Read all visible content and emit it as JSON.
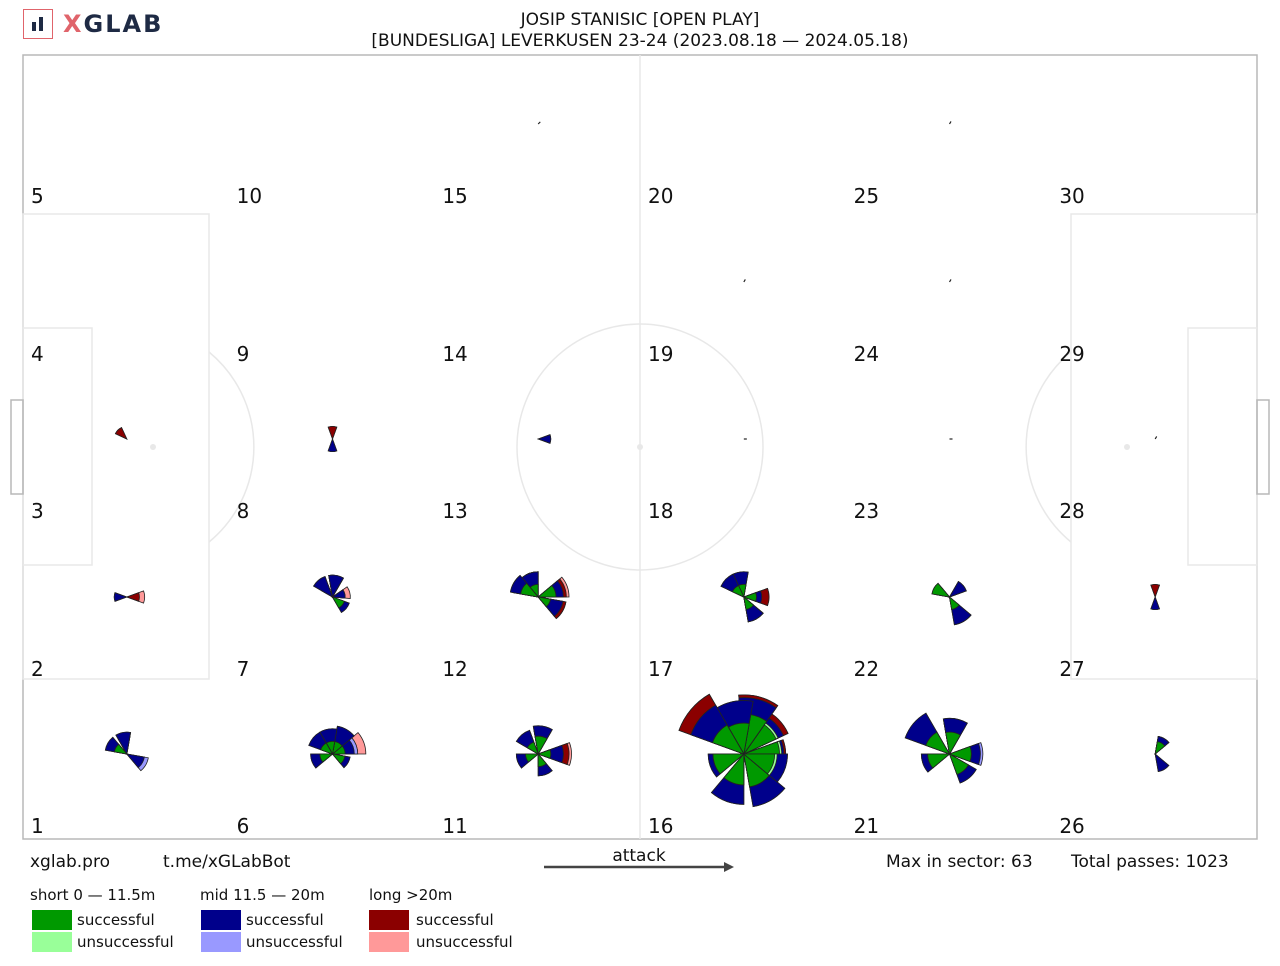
{
  "header": {
    "logo": {
      "text_x": "X",
      "text_rest": "GLAB",
      "icon": "bar-chart-icon"
    },
    "title_line1": "JOSIP STANISIC [OPEN PLAY]",
    "title_line2": "[BUNDESLIGA] LEVERKUSEN 23-24 (2023.08.18 — 2024.05.18)"
  },
  "footer": {
    "site": "xglab.pro",
    "bot": "t.me/xGLabBot",
    "attack": "attack",
    "max_in_sector": "Max in sector: 63",
    "total_passes": "Total passes: 1023"
  },
  "legend": {
    "groups": [
      {
        "label": "short 0 — 11.5m",
        "successful": "successful",
        "unsuccessful": "unsuccessful",
        "color_success": "#009900",
        "color_fail": "#99ff99"
      },
      {
        "label": "mid 11.5 — 20m",
        "successful": "successful",
        "unsuccessful": "unsuccessful",
        "color_success": "#00008b",
        "color_fail": "#9999ff"
      },
      {
        "label": "long >20m",
        "successful": "successful",
        "unsuccessful": "unsuccessful",
        "color_success": "#8b0000",
        "color_fail": "#ff9999"
      }
    ]
  },
  "chart_data": {
    "type": "polar-rose-grid",
    "direction": "attack left-to-right",
    "max_in_sector": 63,
    "total_passes": 1023,
    "sector_labels": [
      "1",
      "2",
      "3",
      "4",
      "5",
      "6",
      "7",
      "8",
      "9",
      "10",
      "11",
      "12",
      "13",
      "14",
      "15",
      "16",
      "17",
      "18",
      "19",
      "20",
      "21",
      "22",
      "23",
      "24",
      "25",
      "26",
      "27",
      "28",
      "29",
      "30"
    ],
    "grid": {
      "columns": 6,
      "rows": 5,
      "numbering": "column-major from bottom-left"
    },
    "roses": [
      {
        "sector": 1,
        "petals": [
          {
            "angle": 100,
            "short": [
              0,
              0
            ],
            "mid": [
              3,
              0
            ],
            "long": [
              2,
              0
            ]
          },
          {
            "angle": 150,
            "short": [
              1,
              0
            ],
            "mid": [
              3,
              0
            ],
            "long": [
              0,
              0
            ]
          },
          {
            "angle": 330,
            "short": [
              0,
              0
            ],
            "mid": [
              2,
              1
            ],
            "long": [
              0,
              2
            ]
          }
        ]
      },
      {
        "sector": 2,
        "petals": [
          {
            "angle": 0,
            "short": [
              0,
              0
            ],
            "mid": [
              0,
              0
            ],
            "long": [
              1,
              1
            ]
          },
          {
            "angle": 180,
            "short": [
              0,
              0
            ],
            "mid": [
              1,
              0
            ],
            "long": [
              0,
              0
            ]
          }
        ]
      },
      {
        "sector": 3,
        "petals": [
          {
            "angle": 135,
            "short": [
              0,
              0
            ],
            "mid": [
              0,
              0
            ],
            "long": [
              1,
              0
            ]
          }
        ]
      },
      {
        "sector": 6,
        "petals": [
          {
            "angle": 20,
            "short": [
              1,
              0
            ],
            "mid": [
              3,
              1
            ],
            "long": [
              4,
              3
            ]
          },
          {
            "angle": 60,
            "short": [
              1,
              0
            ],
            "mid": [
              5,
              0
            ],
            "long": [
              3,
              1
            ]
          },
          {
            "angle": 100,
            "short": [
              1,
              0
            ],
            "mid": [
              4,
              0
            ],
            "long": [
              3,
              0
            ]
          },
          {
            "angle": 140,
            "short": [
              1,
              0
            ],
            "mid": [
              4,
              0
            ],
            "long": [
              1,
              0
            ]
          },
          {
            "angle": 200,
            "short": [
              1,
              0
            ],
            "mid": [
              3,
              0
            ],
            "long": [
              0,
              0
            ]
          },
          {
            "angle": 330,
            "short": [
              1,
              0
            ],
            "mid": [
              2,
              0
            ],
            "long": [
              0,
              0
            ]
          }
        ]
      },
      {
        "sector": 7,
        "petals": [
          {
            "angle": 15,
            "short": [
              0,
              0
            ],
            "mid": [
              1,
              0
            ],
            "long": [
              1,
              1
            ]
          },
          {
            "angle": 80,
            "short": [
              0,
              0
            ],
            "mid": [
              3,
              0
            ],
            "long": [
              3,
              0
            ]
          },
          {
            "angle": 130,
            "short": [
              0,
              0
            ],
            "mid": [
              3,
              0
            ],
            "long": [
              1,
              0
            ]
          },
          {
            "angle": 320,
            "short": [
              1,
              0
            ],
            "mid": [
              2,
              0
            ],
            "long": [
              0,
              0
            ]
          }
        ]
      },
      {
        "sector": 8,
        "petals": [
          {
            "angle": 90,
            "short": [
              0,
              0
            ],
            "mid": [
              0,
              0
            ],
            "long": [
              1,
              0
            ]
          },
          {
            "angle": 270,
            "short": [
              0,
              0
            ],
            "mid": [
              1,
              0
            ],
            "long": [
              0,
              0
            ]
          }
        ]
      },
      {
        "sector": 11,
        "petals": [
          {
            "angle": 0,
            "short": [
              1,
              0
            ],
            "mid": [
              4,
              0
            ],
            "long": [
              6,
              1
            ]
          },
          {
            "angle": 80,
            "short": [
              2,
              0
            ],
            "mid": [
              5,
              0
            ],
            "long": [
              4,
              0
            ]
          },
          {
            "angle": 130,
            "short": [
              1,
              0
            ],
            "mid": [
              4,
              0
            ],
            "long": [
              3,
              0
            ]
          },
          {
            "angle": 200,
            "short": [
              1,
              0
            ],
            "mid": [
              3,
              0
            ],
            "long": [
              0,
              0
            ]
          },
          {
            "angle": 290,
            "short": [
              1,
              0
            ],
            "mid": [
              3,
              0
            ],
            "long": [
              0,
              0
            ]
          }
        ]
      },
      {
        "sector": 12,
        "petals": [
          {
            "angle": 20,
            "short": [
              2,
              0
            ],
            "mid": [
              4,
              0
            ],
            "long": [
              5,
              1
            ]
          },
          {
            "angle": 110,
            "short": [
              1,
              0
            ],
            "mid": [
              4,
              0
            ],
            "long": [
              4,
              0
            ]
          },
          {
            "angle": 150,
            "short": [
              2,
              0
            ],
            "mid": [
              5,
              0
            ],
            "long": [
              4,
              0
            ]
          },
          {
            "angle": 330,
            "short": [
              1,
              0
            ],
            "mid": [
              4,
              0
            ],
            "long": [
              5,
              0
            ]
          }
        ]
      },
      {
        "sector": 13,
        "petals": [
          {
            "angle": 0,
            "short": [
              0,
              0
            ],
            "mid": [
              1,
              0
            ],
            "long": [
              0,
              0
            ]
          }
        ]
      },
      {
        "sector": 15,
        "petals": [
          {
            "angle": 45,
            "short": [
              0,
              0
            ],
            "mid": [
              0,
              0
            ],
            "long": [
              0,
              0
            ]
          }
        ]
      },
      {
        "sector": 16,
        "petals": [
          {
            "angle": 0,
            "short": [
              8,
              1
            ],
            "mid": [
              10,
              0
            ],
            "long": [
              11,
              0
            ]
          },
          {
            "angle": 45,
            "short": [
              8,
              1
            ],
            "mid": [
              12,
              0
            ],
            "long": [
              15,
              0
            ]
          },
          {
            "angle": 75,
            "short": [
              10,
              0
            ],
            "mid": [
              20,
              0
            ],
            "long": [
              22,
              0
            ]
          },
          {
            "angle": 100,
            "short": [
              6,
              0
            ],
            "mid": [
              18,
              0
            ],
            "long": [
              0,
              0
            ]
          },
          {
            "angle": 140,
            "short": [
              7,
              0
            ],
            "mid": [
              20,
              0
            ],
            "long": [
              30,
              0
            ]
          },
          {
            "angle": 200,
            "short": [
              6,
              0
            ],
            "mid": [
              8,
              0
            ],
            "long": [
              0,
              0
            ]
          },
          {
            "angle": 250,
            "short": [
              6,
              0
            ],
            "mid": [
              16,
              0
            ],
            "long": [
              0,
              0
            ]
          },
          {
            "angle": 300,
            "short": [
              7,
              0
            ],
            "mid": [
              18,
              0
            ],
            "long": [
              0,
              0
            ]
          },
          {
            "angle": 340,
            "short": [
              6,
              1
            ],
            "mid": [
              12,
              0
            ],
            "long": [
              0,
              0
            ]
          }
        ]
      },
      {
        "sector": 17,
        "petals": [
          {
            "angle": 0,
            "short": [
              1,
              0
            ],
            "mid": [
              2,
              0
            ],
            "long": [
              4,
              0
            ]
          },
          {
            "angle": 100,
            "short": [
              1,
              0
            ],
            "mid": [
              4,
              0
            ],
            "long": [
              0,
              0
            ]
          },
          {
            "angle": 135,
            "short": [
              1,
              0
            ],
            "mid": [
              4,
              0
            ],
            "long": [
              2,
              0
            ]
          },
          {
            "angle": 300,
            "short": [
              1,
              0
            ],
            "mid": [
              4,
              0
            ],
            "long": [
              4,
              0
            ]
          }
        ]
      },
      {
        "sector": 18,
        "petals": [
          {
            "angle": 0,
            "short": [
              0,
              0
            ],
            "mid": [
              0,
              0
            ],
            "long": [
              0,
              0
            ]
          }
        ]
      },
      {
        "sector": 19,
        "petals": [
          {
            "angle": 60,
            "short": [
              0,
              0
            ],
            "mid": [
              0,
              0
            ],
            "long": [
              0,
              0
            ]
          }
        ]
      },
      {
        "sector": 21,
        "petals": [
          {
            "angle": 0,
            "short": [
              3,
              0
            ],
            "mid": [
              6,
              1
            ],
            "long": [
              0,
              0
            ]
          },
          {
            "angle": 80,
            "short": [
              3,
              0
            ],
            "mid": [
              8,
              0
            ],
            "long": [
              6,
              0
            ]
          },
          {
            "angle": 140,
            "short": [
              4,
              0
            ],
            "mid": [
              14,
              0
            ],
            "long": [
              0,
              0
            ]
          },
          {
            "angle": 200,
            "short": [
              3,
              0
            ],
            "mid": [
              5,
              0
            ],
            "long": [
              0,
              0
            ]
          },
          {
            "angle": 310,
            "short": [
              3,
              0
            ],
            "mid": [
              6,
              0
            ],
            "long": [
              0,
              0
            ]
          }
        ]
      },
      {
        "sector": 22,
        "petals": [
          {
            "angle": 40,
            "short": [
              0,
              0
            ],
            "mid": [
              2,
              0
            ],
            "long": [
              2,
              0
            ]
          },
          {
            "angle": 150,
            "short": [
              2,
              0
            ],
            "mid": [
              1,
              0
            ],
            "long": [
              0,
              0
            ]
          },
          {
            "angle": 300,
            "short": [
              1,
              0
            ],
            "mid": [
              5,
              0
            ],
            "long": [
              0,
              0
            ]
          }
        ]
      },
      {
        "sector": 23,
        "petals": [
          {
            "angle": 0,
            "short": [
              0,
              0
            ],
            "mid": [
              0,
              0
            ],
            "long": [
              0,
              0
            ]
          }
        ]
      },
      {
        "sector": 24,
        "petals": [
          {
            "angle": 60,
            "short": [
              0,
              0
            ],
            "mid": [
              0,
              0
            ],
            "long": [
              0,
              0
            ]
          }
        ]
      },
      {
        "sector": 25,
        "petals": [
          {
            "angle": 60,
            "short": [
              0,
              0
            ],
            "mid": [
              0,
              0
            ],
            "long": [
              0,
              0
            ]
          }
        ]
      },
      {
        "sector": 26,
        "petals": [
          {
            "angle": 60,
            "short": [
              1,
              0
            ],
            "mid": [
              2,
              0
            ],
            "long": [
              2,
              0
            ]
          },
          {
            "angle": 300,
            "short": [
              0,
              0
            ],
            "mid": [
              2,
              0
            ],
            "long": [
              0,
              0
            ]
          }
        ]
      },
      {
        "sector": 27,
        "petals": [
          {
            "angle": 90,
            "short": [
              0,
              0
            ],
            "mid": [
              0,
              0
            ],
            "long": [
              1,
              0
            ]
          },
          {
            "angle": 270,
            "short": [
              0,
              0
            ],
            "mid": [
              1,
              0
            ],
            "long": [
              0,
              0
            ]
          }
        ]
      },
      {
        "sector": 28,
        "petals": [
          {
            "angle": 60,
            "short": [
              0,
              0
            ],
            "mid": [
              0,
              0
            ],
            "long": [
              0,
              0
            ]
          }
        ]
      }
    ]
  }
}
